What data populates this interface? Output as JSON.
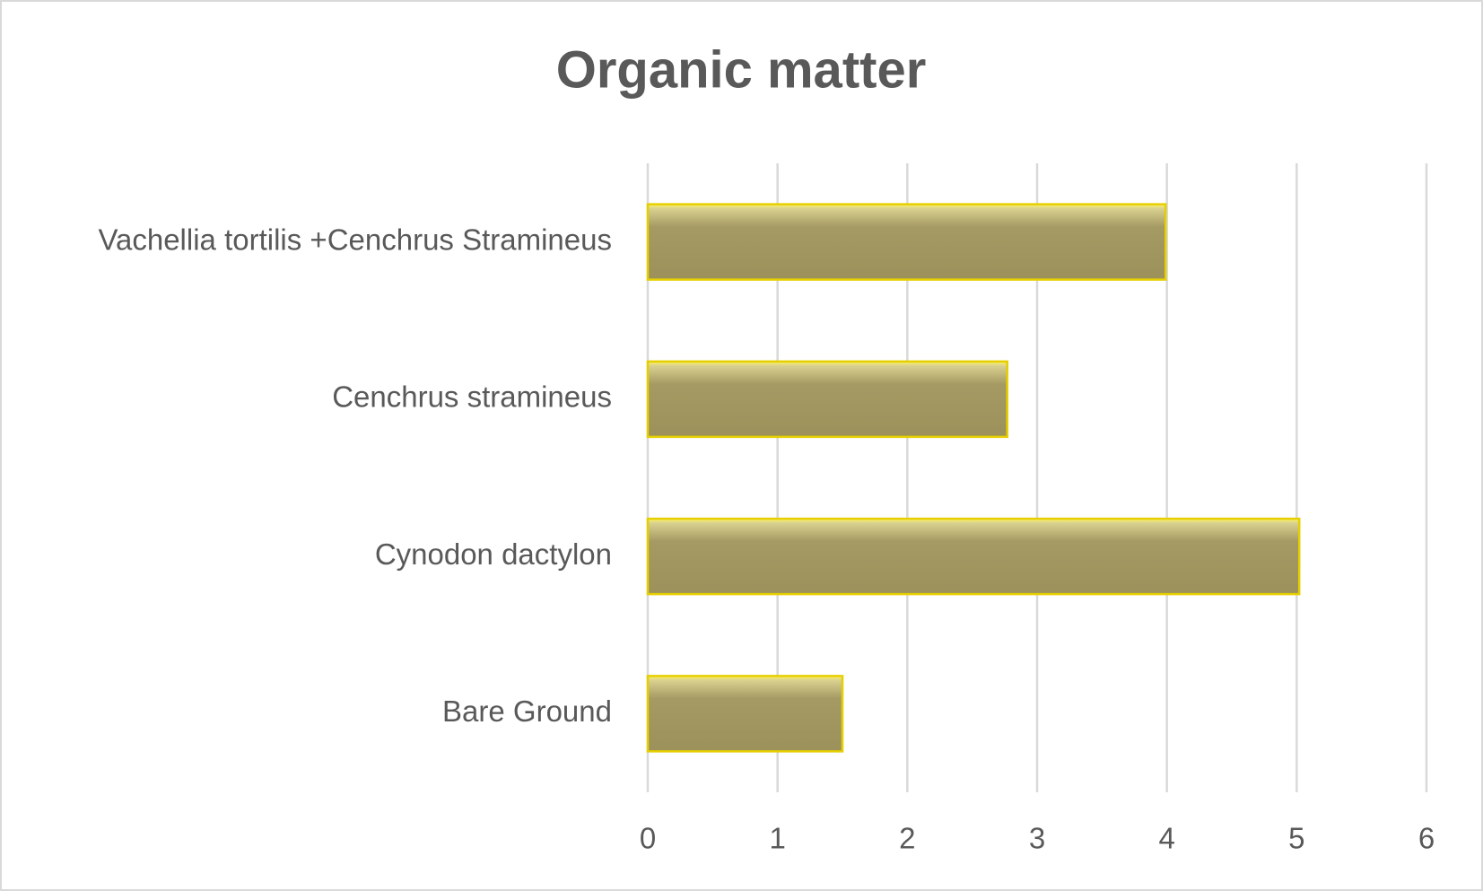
{
  "chart_data": {
    "type": "bar",
    "orientation": "horizontal",
    "title": "Organic matter",
    "categories": [
      "Vachellia tortilis +Cenchrus Stramineus",
      "Cenchrus stramineus",
      "Cynodon dactylon",
      "Bare Ground"
    ],
    "values": [
      3.99,
      2.77,
      5.02,
      1.5
    ],
    "color": "#9c915a",
    "edge_color": "#e6cf00",
    "xlim": [
      0,
      6
    ],
    "xticks": [
      0,
      1,
      2,
      3,
      4,
      5,
      6
    ],
    "grid": true
  }
}
